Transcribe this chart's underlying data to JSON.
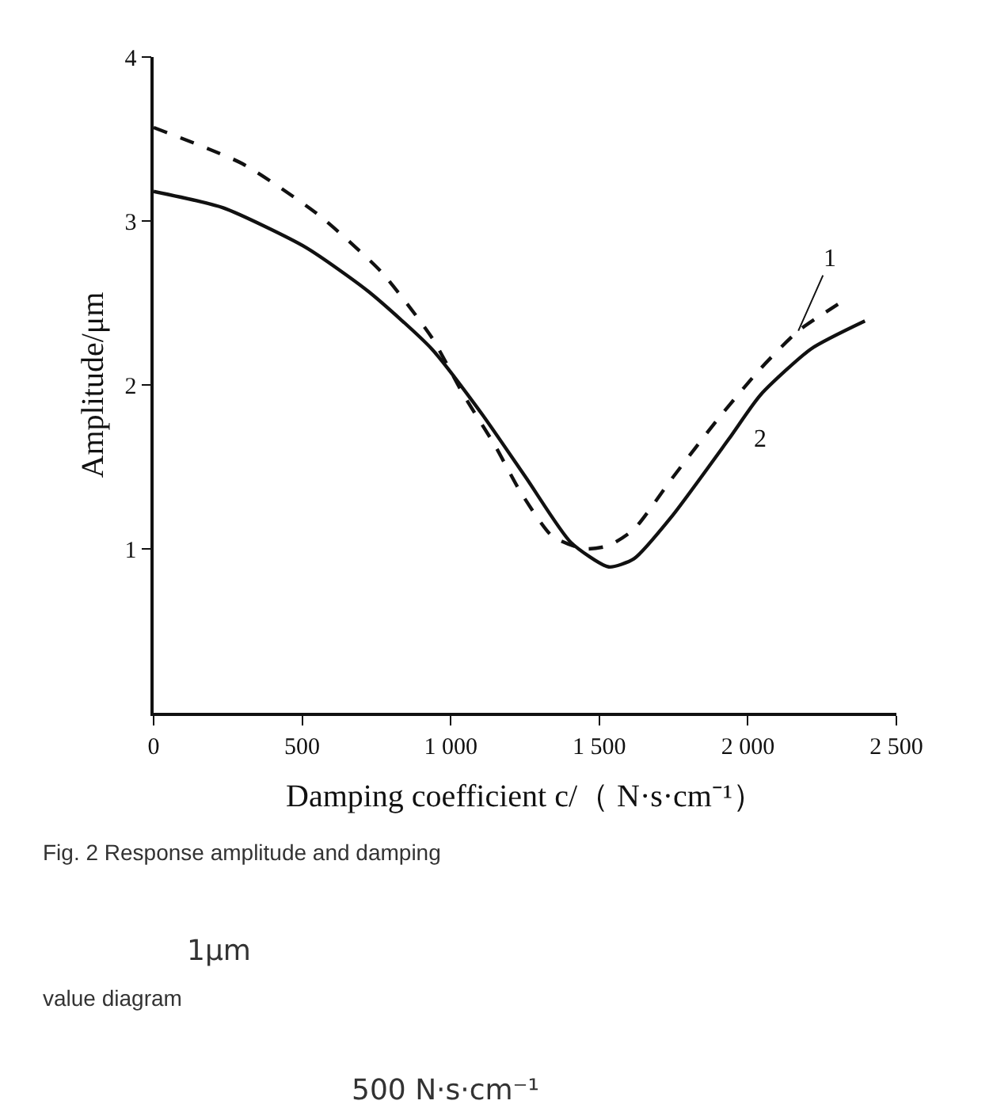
{
  "chart_data": {
    "type": "line",
    "xlabel": "Damping coefficient c/（ N·s·cm⁻¹）",
    "ylabel": "Amplitude/μm",
    "x": [
      0,
      298,
      553,
      766,
      936,
      1043,
      1149,
      1234,
      1340,
      1447,
      1532,
      1617,
      1745,
      1894,
      2043,
      2170,
      2319
    ],
    "series": [
      {
        "name": "1",
        "color": "#111111",
        "line_style": "dashed",
        "values": [
          3.57,
          3.35,
          3.04,
          2.69,
          2.29,
          1.94,
          1.63,
          1.35,
          1.08,
          1.0,
          1.02,
          1.12,
          1.43,
          1.78,
          2.1,
          2.33,
          2.51
        ]
      },
      {
        "name": "2",
        "color": "#111111",
        "line_style": "solid",
        "x": [
          0,
          234,
          511,
          723,
          936,
          1106,
          1255,
          1404,
          1532,
          1617,
          1745,
          1936,
          2043,
          2213,
          2394
        ],
        "values": [
          3.18,
          3.08,
          2.84,
          2.57,
          2.22,
          1.82,
          1.43,
          1.04,
          0.89,
          0.94,
          1.2,
          1.67,
          1.94,
          2.22,
          2.39
        ]
      }
    ],
    "xlim": [
      0,
      2500
    ],
    "ylim": [
      0,
      4
    ],
    "xticks": [
      0,
      500,
      {
        "value": 1000,
        "label": "1 000"
      },
      {
        "value": 1500,
        "label": "1 500"
      },
      {
        "value": 2000,
        "label": "2 000"
      },
      {
        "value": 2500,
        "label": "2 500"
      }
    ],
    "yticks": [
      1,
      2,
      3,
      4
    ],
    "legend": false,
    "marker": "none",
    "annotations": [
      "Fig. 2 Response amplitude and damping",
      "1μm",
      "value diagram",
      "500 N·s·cm⁻¹"
    ]
  }
}
